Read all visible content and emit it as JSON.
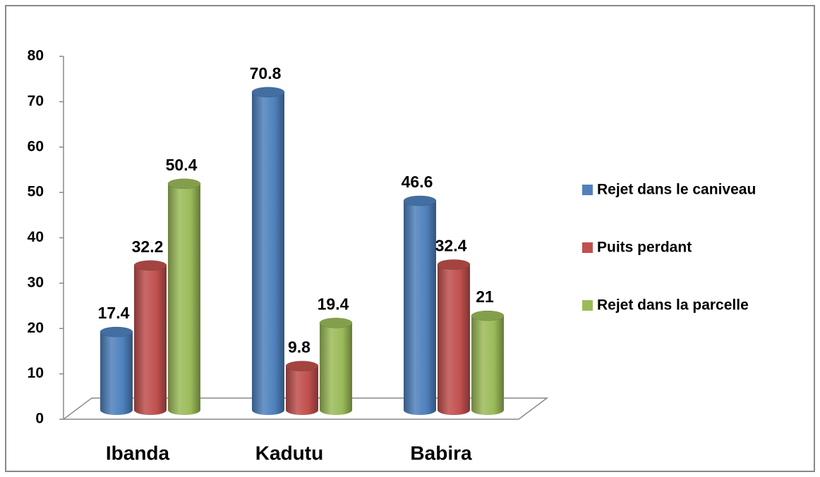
{
  "chart_data": {
    "type": "bar",
    "categories": [
      "Ibanda",
      "Kadutu",
      "Babira"
    ],
    "series": [
      {
        "name": "Rejet dans le caniveau",
        "color": "#4f81bd",
        "values": [
          17.4,
          70.8,
          46.6
        ]
      },
      {
        "name": "Puits perdant",
        "color": "#c0504d",
        "values": [
          32.2,
          9.8,
          32.4
        ]
      },
      {
        "name": "Rejet dans la parcelle",
        "color": "#9bbb59",
        "values": [
          50.4,
          19.4,
          21
        ]
      }
    ],
    "ylim": [
      0,
      80
    ],
    "yticks": [
      0,
      10,
      20,
      30,
      40,
      50,
      60,
      70,
      80
    ],
    "legend": "right"
  }
}
